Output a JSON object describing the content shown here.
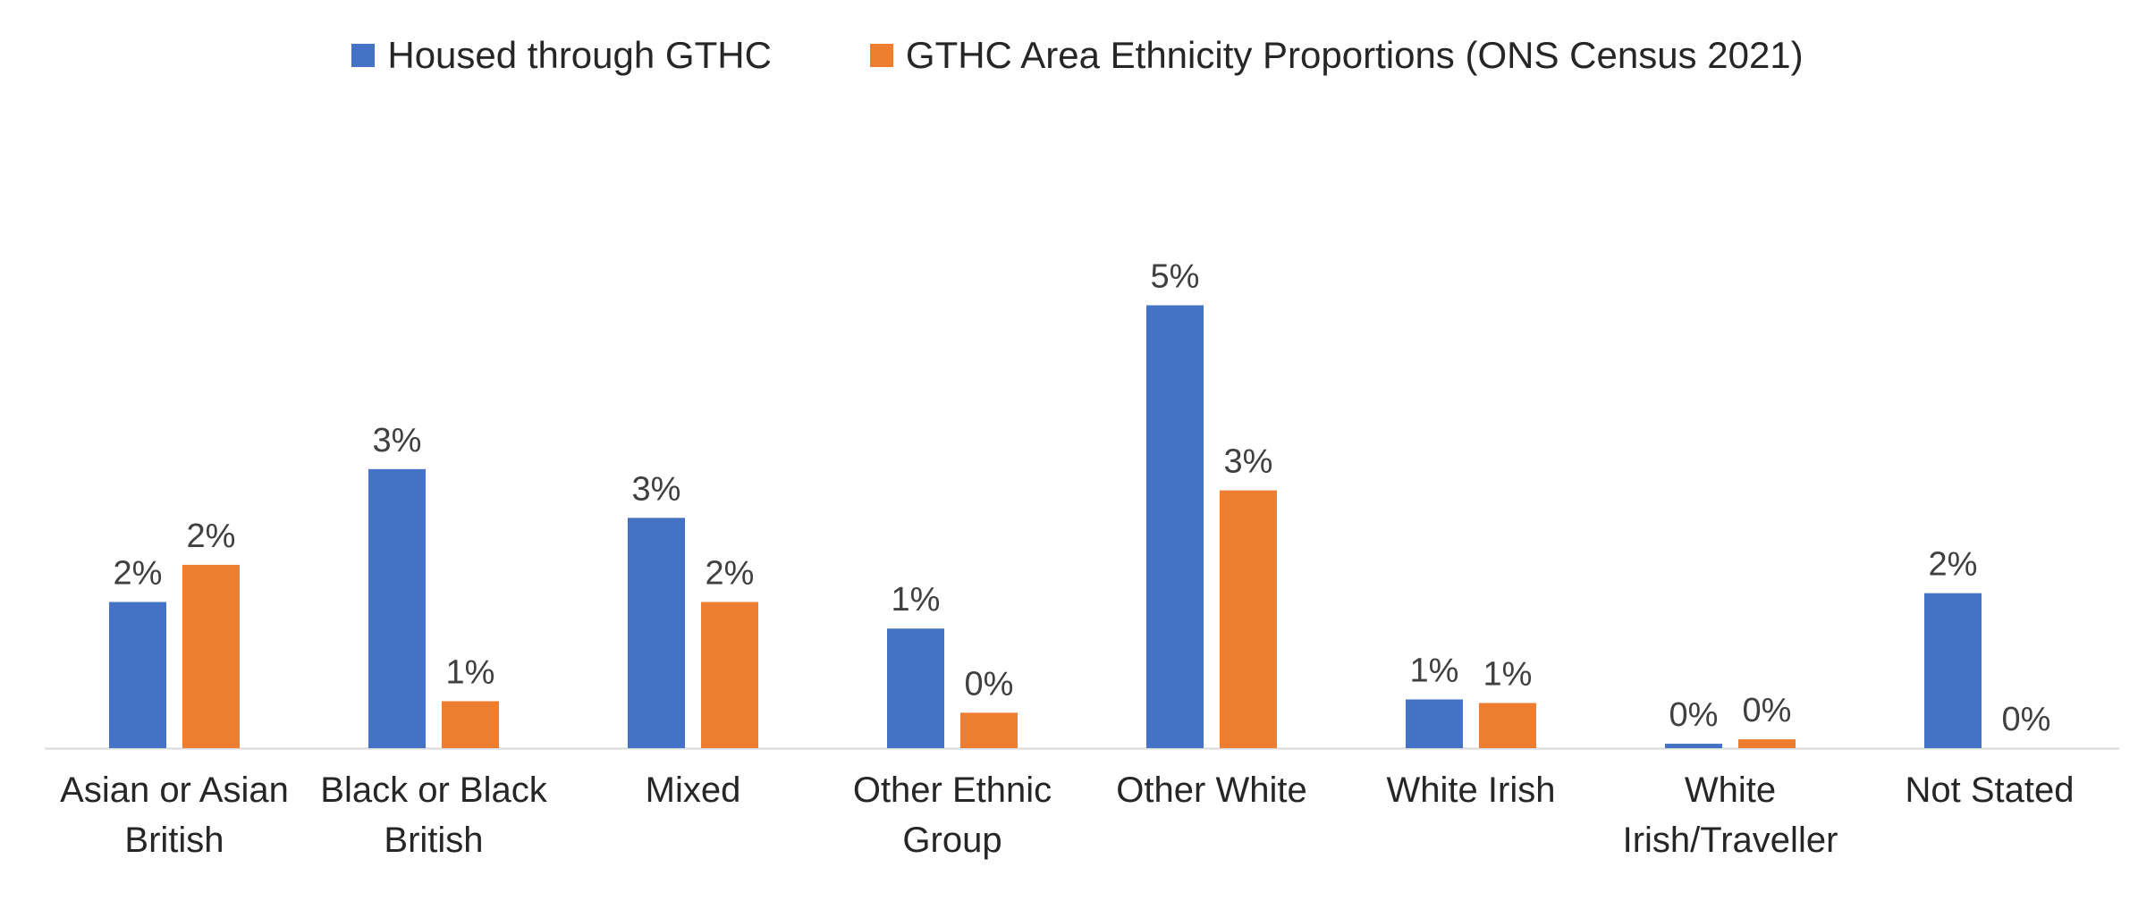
{
  "chart_data": {
    "type": "bar",
    "categories": [
      [
        "Asian or Asian",
        "British"
      ],
      [
        "Black or Black",
        "British"
      ],
      [
        "Mixed"
      ],
      [
        "Other Ethnic",
        "Group"
      ],
      [
        "Other White"
      ],
      [
        "White Irish"
      ],
      [
        "White",
        "Irish/Traveller"
      ],
      [
        "Not Stated"
      ]
    ],
    "series": [
      {
        "name": "Housed through GTHC",
        "color": "#4472C4",
        "values": [
          0.0165,
          0.0315,
          0.026,
          0.0135,
          0.05,
          0.0055,
          0.0005,
          0.0175
        ],
        "labels": [
          "2%",
          "3%",
          "3%",
          "1%",
          "5%",
          "1%",
          "0%",
          "2%"
        ]
      },
      {
        "name": "GTHC Area Ethnicity Proportions (ONS Census 2021)",
        "color": "#ED7D31",
        "values": [
          0.0207,
          0.0053,
          0.0165,
          0.004,
          0.0291,
          0.0051,
          0.001,
          0.0
        ],
        "labels": [
          "2%",
          "1%",
          "2%",
          "0%",
          "3%",
          "1%",
          "0%",
          "0%"
        ]
      }
    ],
    "ylim": [
      0,
      0.055
    ],
    "grid": false,
    "legend_position": "top-center"
  }
}
